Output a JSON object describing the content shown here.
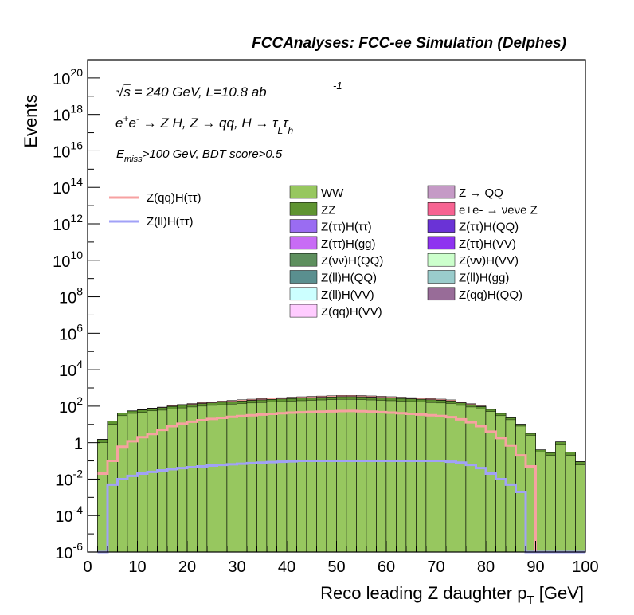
{
  "header": {
    "title": "FCCAnalyses: FCC-ee Simulation (Delphes)"
  },
  "annotations": {
    "energy_text": "√s = 240 GeV, L=10.8 ab",
    "lumi_exponent": "-1",
    "process_text": "e+e- → Z H, Z → qq, H → τLτh",
    "selection_text": "Emiss>100 GeV, BDT score>0.5"
  },
  "colors": {
    "WW": "#97c75f",
    "ZZ": "#5f9431",
    "Z(ττ)H(ττ)": "#9a6cf2",
    "Z(ττ)H(gg)": "#c86cf5",
    "Z(νν)H(QQ)": "#5e8f5e",
    "Z(ll)H(QQ)": "#5a8f8f",
    "Z(ll)H(VV)": "#ccffff",
    "Z(qq)H(VV)": "#ffccff",
    "Z → QQ": "#c59ac6",
    "e+e- → νeνe Z": "#f76392",
    "Z(ττ)H(QQ)": "#6a33d6",
    "Z(ττ)H(VV)": "#8e33f0",
    "Z(νν)H(VV)": "#ccffcc",
    "Z(ll)H(gg)": "#9acccc",
    "Z(qq)H(QQ)": "#986c98",
    "Z(qq)H(ττ)": "#f7a1a1",
    "Z(ll)H(ττ)": "#a1a1f7"
  },
  "chart_data": {
    "type": "bar",
    "title": "",
    "xlabel": "Reco leading Z daughter p_T [GeV]",
    "ylabel": "Events",
    "xlim": [
      0,
      100
    ],
    "ylim": [
      1e-06,
      1e+21
    ],
    "yscale": "log",
    "grid": false,
    "x_ticks": [
      "0",
      "10",
      "20",
      "30",
      "40",
      "50",
      "60",
      "70",
      "80",
      "90",
      "100"
    ],
    "y_ticks": [
      "10^-6",
      "10^-4",
      "10^-2",
      "1",
      "10^2",
      "10^4",
      "10^6",
      "10^8",
      "10^10",
      "10^12",
      "10^14",
      "10^16",
      "10^18",
      "10^20"
    ],
    "bin_edges": [
      2,
      4,
      6,
      8,
      10,
      12,
      14,
      16,
      18,
      20,
      22,
      24,
      26,
      28,
      30,
      32,
      34,
      36,
      38,
      40,
      42,
      44,
      46,
      48,
      50,
      52,
      54,
      56,
      58,
      60,
      62,
      64,
      66,
      68,
      70,
      72,
      74,
      76,
      78,
      80,
      82,
      84,
      86,
      88,
      90,
      92,
      94,
      96,
      98,
      100
    ],
    "stacked_total": [
      2,
      15,
      40,
      45,
      50,
      60,
      70,
      80,
      90,
      100,
      110,
      120,
      130,
      140,
      150,
      160,
      170,
      180,
      190,
      200,
      210,
      220,
      230,
      240,
      250,
      260,
      260,
      250,
      240,
      230,
      220,
      210,
      200,
      190,
      180,
      160,
      130,
      100,
      80,
      55,
      35,
      20,
      10,
      3,
      0.4,
      0.3,
      1.0,
      0.3,
      0.1
    ],
    "legend_position": "top-right",
    "stacked_series": [
      {
        "name": "WW",
        "mid": [
          1,
          10,
          30,
          40,
          45,
          55,
          60,
          70,
          80,
          90,
          100,
          110,
          120,
          130,
          140,
          150,
          160,
          170,
          180,
          190,
          200,
          210,
          220,
          230,
          240,
          240,
          230,
          220,
          210,
          200,
          190,
          180,
          170,
          160,
          150,
          140,
          110,
          90,
          70,
          50,
          30,
          18,
          8,
          2.5,
          0.3,
          0.2,
          0.8,
          0.2,
          0.06
        ]
      },
      {
        "name": "ZZ",
        "mid": [
          0.5,
          5,
          12,
          14,
          16,
          19,
          22,
          26,
          30,
          33,
          37,
          41,
          45,
          48,
          52,
          56,
          60,
          64,
          68,
          72,
          76,
          80,
          84,
          88,
          92,
          94,
          92,
          88,
          84,
          80,
          76,
          72,
          68,
          64,
          60,
          52,
          42,
          32,
          24,
          16,
          10,
          5,
          2,
          0.7,
          0.1,
          0.08,
          0.3,
          0.1,
          0.03
        ]
      },
      {
        "name": "Z(ττ)H(ττ)",
        "mid": [
          0.03,
          0.2,
          0.6,
          0.8,
          1,
          1.2,
          1.5,
          1.8,
          2.1,
          2.4,
          2.7,
          3,
          3.3,
          3.6,
          3.9,
          4.2,
          4.5,
          4.8,
          5.1,
          5.4,
          5.7,
          6,
          6.3,
          6.6,
          6.9,
          7,
          6.8,
          6.5,
          6.2,
          5.9,
          5.6,
          5.3,
          5,
          4.7,
          4.4,
          3.8,
          3,
          2.3,
          1.6,
          1,
          0.5,
          0.2,
          0.08,
          0.02,
          0.005,
          0.003,
          0.01,
          0.004,
          0.001
        ]
      },
      {
        "name": "Z(ττ)H(gg)",
        "mid": [
          0,
          0.05,
          0.06,
          0.07,
          0.08,
          0.09,
          0.1,
          0.11,
          0.12,
          0.13,
          0.14,
          0.15,
          0.16,
          0.17,
          0.18,
          0.19,
          0.2,
          0.2,
          0.2,
          0.2,
          0.2,
          0.2,
          0.2,
          0.2,
          0.2,
          0.2,
          0.2,
          0.2,
          0.2,
          0.2,
          0.2,
          0.2,
          0.2,
          0.2,
          0.2,
          0.18,
          0.16,
          0.14,
          0.1,
          0.06,
          0.03,
          0.01,
          0,
          0,
          0,
          0,
          0,
          0,
          0
        ]
      },
      {
        "name": "Z(qq)H(ττ)",
        "mid": [
          0.02,
          0.1,
          0.6,
          1.2,
          2,
          3,
          5,
          8,
          11,
          14,
          17,
          20,
          23,
          26,
          29,
          32,
          35,
          38,
          41,
          44,
          46,
          48,
          50,
          52,
          54,
          55,
          53,
          50,
          47,
          44,
          41,
          38,
          35,
          32,
          29,
          25,
          19,
          13,
          8,
          4,
          1.8,
          0.7,
          0.2,
          0.05,
          0,
          0,
          0,
          0,
          0
        ]
      },
      {
        "name": "Z(ll)H(ττ)",
        "mid": [
          0,
          0.005,
          0.01,
          0.015,
          0.02,
          0.025,
          0.03,
          0.035,
          0.04,
          0.045,
          0.05,
          0.055,
          0.06,
          0.065,
          0.07,
          0.075,
          0.08,
          0.085,
          0.09,
          0.095,
          0.1,
          0.1,
          0.1,
          0.1,
          0.1,
          0.1,
          0.1,
          0.1,
          0.1,
          0.1,
          0.1,
          0.1,
          0.1,
          0.1,
          0.1,
          0.09,
          0.08,
          0.06,
          0.04,
          0.02,
          0.01,
          0.005,
          0.002,
          0,
          0,
          0,
          0,
          0,
          0
        ]
      }
    ],
    "line_series": [
      {
        "name": "Z(qq)H(ττ)",
        "values": [
          0.02,
          0.1,
          0.6,
          1.2,
          2,
          3,
          5,
          8,
          11,
          14,
          17,
          20,
          23,
          26,
          29,
          32,
          35,
          38,
          41,
          44,
          46,
          48,
          50,
          52,
          54,
          55,
          53,
          50,
          47,
          44,
          41,
          38,
          35,
          32,
          29,
          25,
          19,
          13,
          8,
          4,
          1.8,
          0.7,
          0.2,
          0.05,
          0,
          0,
          0,
          0,
          0
        ]
      },
      {
        "name": "Z(ll)H(ττ)",
        "values": [
          0,
          0.005,
          0.01,
          0.015,
          0.02,
          0.025,
          0.03,
          0.035,
          0.04,
          0.045,
          0.05,
          0.055,
          0.06,
          0.065,
          0.07,
          0.075,
          0.08,
          0.085,
          0.09,
          0.095,
          0.1,
          0.1,
          0.1,
          0.1,
          0.1,
          0.1,
          0.1,
          0.1,
          0.1,
          0.1,
          0.1,
          0.1,
          0.1,
          0.1,
          0.1,
          0.09,
          0.08,
          0.06,
          0.04,
          0.02,
          0.01,
          0.005,
          0.002,
          0,
          0,
          0,
          0,
          0,
          0
        ]
      }
    ],
    "legend": {
      "lines": [
        "Z(qq)H(ττ)",
        "Z(ll)H(ττ)"
      ],
      "fills": [
        "WW",
        "Z → QQ",
        "ZZ",
        "e+e- → νeνe Z",
        "Z(ττ)H(ττ)",
        "Z(ττ)H(QQ)",
        "Z(ττ)H(gg)",
        "Z(ττ)H(VV)",
        "Z(νν)H(QQ)",
        "Z(νν)H(VV)",
        "Z(ll)H(QQ)",
        "Z(ll)H(gg)",
        "Z(ll)H(VV)",
        "Z(qq)H(QQ)",
        "Z(qq)H(VV)"
      ]
    }
  }
}
